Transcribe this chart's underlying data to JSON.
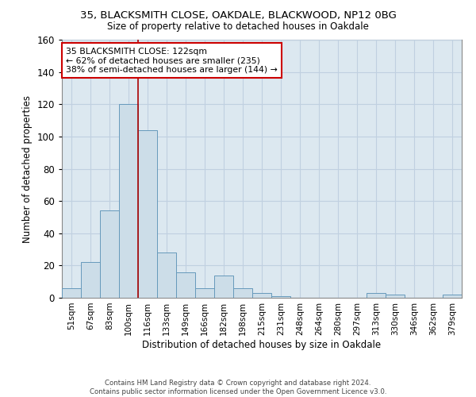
{
  "title1": "35, BLACKSMITH CLOSE, OAKDALE, BLACKWOOD, NP12 0BG",
  "title2": "Size of property relative to detached houses in Oakdale",
  "xlabel": "Distribution of detached houses by size in Oakdale",
  "ylabel": "Number of detached properties",
  "bar_labels": [
    "51sqm",
    "67sqm",
    "83sqm",
    "100sqm",
    "116sqm",
    "133sqm",
    "149sqm",
    "166sqm",
    "182sqm",
    "198sqm",
    "215sqm",
    "231sqm",
    "248sqm",
    "264sqm",
    "280sqm",
    "297sqm",
    "313sqm",
    "330sqm",
    "346sqm",
    "362sqm",
    "379sqm"
  ],
  "bar_values": [
    6,
    22,
    54,
    120,
    104,
    28,
    16,
    6,
    14,
    6,
    3,
    1,
    0,
    0,
    0,
    0,
    3,
    2,
    0,
    0,
    2
  ],
  "bar_color": "#ccdde8",
  "bar_edge_color": "#6699bb",
  "vline_color": "#aa0000",
  "annotation_text": "35 BLACKSMITH CLOSE: 122sqm\n← 62% of detached houses are smaller (235)\n38% of semi-detached houses are larger (144) →",
  "annotation_box_color": "white",
  "annotation_box_edge": "#cc0000",
  "ylim": [
    0,
    160
  ],
  "yticks": [
    0,
    20,
    40,
    60,
    80,
    100,
    120,
    140,
    160
  ],
  "grid_color": "#c0d0e0",
  "bg_color": "#dce8f0",
  "footer1": "Contains HM Land Registry data © Crown copyright and database right 2024.",
  "footer2": "Contains public sector information licensed under the Open Government Licence v3.0."
}
